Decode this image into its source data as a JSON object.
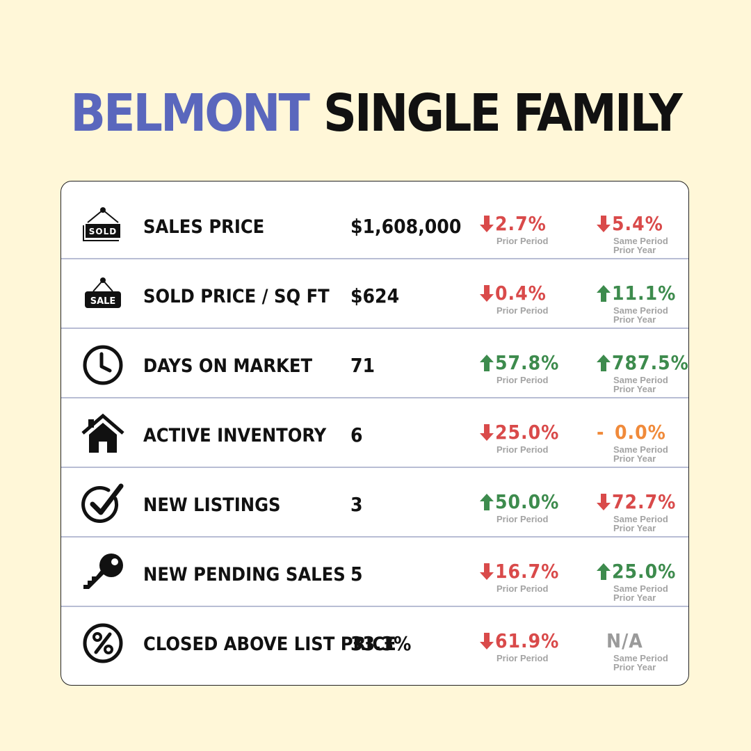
{
  "title": {
    "city": "BELMONT",
    "type": "SINGLE FAMILY"
  },
  "labels": {
    "prior_period": "Prior Period",
    "same_period_l1": "Same Period",
    "same_period_l2": "Prior Year"
  },
  "colors": {
    "background": "#fff7d8",
    "accent": "#5a67bd",
    "up": "#3d8b4d",
    "down": "#d94a4a",
    "flat": "#f08a3a",
    "na": "#9a9a9a"
  },
  "rows": [
    {
      "icon": "sold-sign-icon",
      "label": "SALES PRICE",
      "value": "$1,608,000",
      "prior": {
        "dir": "down",
        "text": "2.7%"
      },
      "year": {
        "dir": "down",
        "text": "5.4%"
      }
    },
    {
      "icon": "sale-sign-icon",
      "label": "SOLD PRICE / SQ FT",
      "value": "$624",
      "prior": {
        "dir": "down",
        "text": "0.4%"
      },
      "year": {
        "dir": "up",
        "text": "11.1%"
      }
    },
    {
      "icon": "clock-icon",
      "label": "DAYS ON MARKET",
      "value": "71",
      "prior": {
        "dir": "up",
        "text": "57.8%"
      },
      "year": {
        "dir": "up",
        "text": "787.5%"
      }
    },
    {
      "icon": "house-icon",
      "label": "ACTIVE INVENTORY",
      "value": "6",
      "prior": {
        "dir": "down",
        "text": "25.0%"
      },
      "year": {
        "dir": "flat",
        "symbol": "-",
        "text": "0.0%"
      }
    },
    {
      "icon": "check-circle-icon",
      "label": "NEW LISTINGS",
      "value": "3",
      "prior": {
        "dir": "up",
        "text": "50.0%"
      },
      "year": {
        "dir": "down",
        "text": "72.7%"
      }
    },
    {
      "icon": "key-icon",
      "label": "NEW PENDING SALES",
      "value": "5",
      "prior": {
        "dir": "down",
        "text": "16.7%"
      },
      "year": {
        "dir": "up",
        "text": "25.0%"
      }
    },
    {
      "icon": "percent-circle-icon",
      "label": "CLOSED ABOVE LIST PRICE",
      "value": "33.3%",
      "prior": {
        "dir": "down",
        "text": "61.9%"
      },
      "year": {
        "dir": "na",
        "text": "N/A"
      }
    }
  ]
}
